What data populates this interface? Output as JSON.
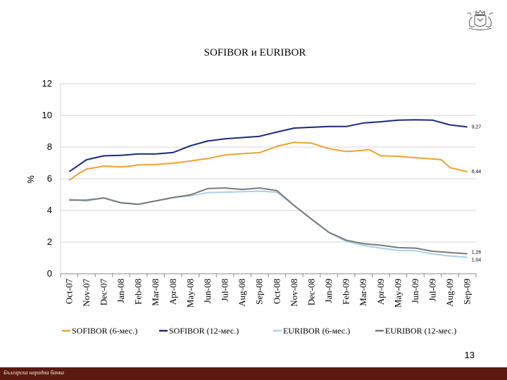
{
  "slide": {
    "page_number": "13",
    "footer_text": "Българска народна банка",
    "logo_icon": "bnb-coat-of-arms-icon"
  },
  "chart_data": {
    "type": "line",
    "title": "SOFIBOR и EURIBOR",
    "xlabel": "",
    "ylabel": "%",
    "ylim": [
      0,
      12
    ],
    "yticks": [
      0,
      2,
      4,
      6,
      8,
      10,
      12
    ],
    "grid": true,
    "legend_position": "bottom",
    "categories": [
      "Oct-07",
      "Nov-07",
      "Dec-07",
      "Jan-08",
      "Feb-08",
      "Mar-08",
      "Apr-08",
      "May-08",
      "Jun-08",
      "Jul-08",
      "Aug-08",
      "Sep-08",
      "Oct-08",
      "Nov-08",
      "Dec-08",
      "Jan-09",
      "Feb-09",
      "Mar-09",
      "Apr-09",
      "May-09",
      "Jun-09",
      "Jul-09",
      "Aug-09",
      "Sep-09"
    ],
    "series": [
      {
        "name": "SOFIBOR (6-мес.)",
        "color": "#f0a030",
        "end_label": "6,44",
        "points": [
          [
            0,
            5.9
          ],
          [
            0.5,
            6.3
          ],
          [
            1,
            6.62
          ],
          [
            1.5,
            6.7
          ],
          [
            2,
            6.8
          ],
          [
            3,
            6.75
          ],
          [
            3.5,
            6.8
          ],
          [
            4,
            6.87
          ],
          [
            5,
            6.9
          ],
          [
            6,
            6.98
          ],
          [
            7,
            7.12
          ],
          [
            8,
            7.28
          ],
          [
            9,
            7.5
          ],
          [
            10,
            7.58
          ],
          [
            11,
            7.65
          ],
          [
            11.5,
            7.85
          ],
          [
            12,
            8.05
          ],
          [
            13,
            8.3
          ],
          [
            14,
            8.25
          ],
          [
            15,
            7.9
          ],
          [
            16,
            7.72
          ],
          [
            16.5,
            7.75
          ],
          [
            17,
            7.8
          ],
          [
            17.3,
            7.85
          ],
          [
            18,
            7.45
          ],
          [
            19,
            7.42
          ],
          [
            20,
            7.33
          ],
          [
            21,
            7.25
          ],
          [
            21.5,
            7.2
          ],
          [
            22,
            6.7
          ],
          [
            23,
            6.44
          ]
        ]
      },
      {
        "name": "SOFIBOR (12-мес.)",
        "color": "#1a2a7a",
        "end_label": "9,27",
        "points": [
          [
            0,
            6.45
          ],
          [
            1,
            7.2
          ],
          [
            2,
            7.45
          ],
          [
            3,
            7.48
          ],
          [
            4,
            7.57
          ],
          [
            5,
            7.57
          ],
          [
            6,
            7.66
          ],
          [
            7,
            8.08
          ],
          [
            8,
            8.38
          ],
          [
            9,
            8.52
          ],
          [
            10,
            8.6
          ],
          [
            11,
            8.68
          ],
          [
            12,
            8.95
          ],
          [
            13,
            9.2
          ],
          [
            14,
            9.25
          ],
          [
            15,
            9.3
          ],
          [
            16,
            9.3
          ],
          [
            17,
            9.52
          ],
          [
            18,
            9.6
          ],
          [
            19,
            9.7
          ],
          [
            20,
            9.72
          ],
          [
            21,
            9.7
          ],
          [
            22,
            9.4
          ],
          [
            23,
            9.27
          ]
        ]
      },
      {
        "name": "EURIBOR (6-мес.)",
        "color": "#a8d0e8",
        "end_label": "1,04",
        "points": [
          [
            0,
            4.7
          ],
          [
            1,
            4.6
          ],
          [
            2,
            4.8
          ],
          [
            3,
            4.5
          ],
          [
            4,
            4.4
          ],
          [
            5,
            4.6
          ],
          [
            6,
            4.8
          ],
          [
            7,
            4.92
          ],
          [
            8,
            5.12
          ],
          [
            9,
            5.15
          ],
          [
            10,
            5.18
          ],
          [
            11,
            5.22
          ],
          [
            12,
            5.15
          ],
          [
            13,
            4.3
          ],
          [
            14,
            3.45
          ],
          [
            15,
            2.6
          ],
          [
            16,
            2.05
          ],
          [
            17,
            1.78
          ],
          [
            18,
            1.62
          ],
          [
            19,
            1.48
          ],
          [
            20,
            1.45
          ],
          [
            21,
            1.25
          ],
          [
            22,
            1.12
          ],
          [
            23,
            1.04
          ]
        ]
      },
      {
        "name": "EURIBOR (12-мес.)",
        "color": "#7a7a7a",
        "end_label": "1,26",
        "points": [
          [
            0,
            4.65
          ],
          [
            1,
            4.65
          ],
          [
            2,
            4.78
          ],
          [
            3,
            4.47
          ],
          [
            4,
            4.38
          ],
          [
            5,
            4.6
          ],
          [
            6,
            4.82
          ],
          [
            7,
            4.98
          ],
          [
            8,
            5.38
          ],
          [
            9,
            5.42
          ],
          [
            10,
            5.32
          ],
          [
            11,
            5.42
          ],
          [
            12,
            5.25
          ],
          [
            13,
            4.3
          ],
          [
            14,
            3.45
          ],
          [
            15,
            2.62
          ],
          [
            16,
            2.12
          ],
          [
            17,
            1.9
          ],
          [
            18,
            1.8
          ],
          [
            19,
            1.65
          ],
          [
            20,
            1.62
          ],
          [
            21,
            1.42
          ],
          [
            22,
            1.34
          ],
          [
            23,
            1.26
          ]
        ]
      }
    ]
  }
}
